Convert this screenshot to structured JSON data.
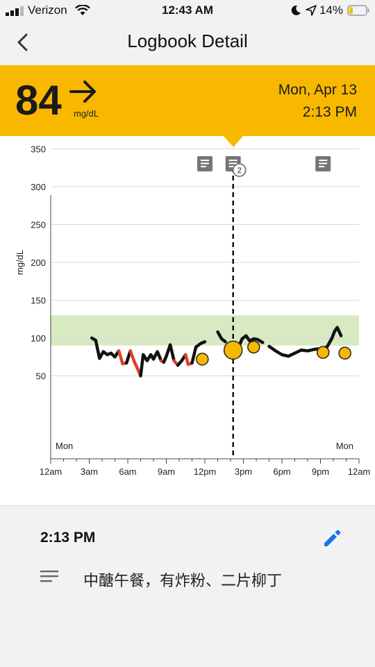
{
  "status_bar": {
    "carrier": "Verizon",
    "time": "12:43 AM",
    "battery": "14%",
    "icons": [
      "signal-icon",
      "wifi-icon",
      "moon-icon",
      "location-icon",
      "battery-icon"
    ]
  },
  "nav": {
    "title": "Logbook Detail",
    "back_icon": "chevron-left-icon"
  },
  "reading": {
    "value": "84",
    "unit": "mg/dL",
    "trend_icon": "arrow-right-icon",
    "date": "Mon, Apr 13",
    "time": "2:13 PM"
  },
  "colors": {
    "banner": "#f9b800",
    "target_range": "#d7eac2",
    "glucose_line": "#111111",
    "low_line": "#e53d2a",
    "marker": "#f9b800",
    "edit": "#1a73e8"
  },
  "chart_data": {
    "type": "line",
    "ylabel": "mg/dL",
    "ylim": [
      0,
      360
    ],
    "yticks": [
      "350",
      "300",
      "250",
      "200",
      "150",
      "100",
      "50"
    ],
    "xticks": [
      "12am",
      "3am",
      "6am",
      "9am",
      "12pm",
      "3pm",
      "6pm",
      "9pm",
      "12am"
    ],
    "day_labels": [
      "Mon",
      "Mon"
    ],
    "target_range": [
      90,
      130
    ],
    "low_threshold": 70,
    "selected_hour": 14.2,
    "note_badge": "2",
    "note_hours": [
      12.0,
      14.2,
      21.2
    ],
    "segments": [
      [
        [
          3.2,
          100
        ],
        [
          3.5,
          97
        ],
        [
          3.8,
          73
        ],
        [
          4.1,
          82
        ],
        [
          4.4,
          78
        ],
        [
          4.7,
          80
        ],
        [
          5.0,
          75
        ],
        [
          5.3,
          83
        ],
        [
          5.6,
          66
        ],
        [
          5.9,
          67
        ],
        [
          6.2,
          83
        ],
        [
          6.5,
          69
        ],
        [
          6.8,
          58
        ],
        [
          7.0,
          50
        ],
        [
          7.2,
          78
        ],
        [
          7.5,
          70
        ],
        [
          7.8,
          78
        ],
        [
          8.0,
          72
        ],
        [
          8.3,
          82
        ],
        [
          8.6,
          70
        ],
        [
          8.8,
          68
        ],
        [
          9.0,
          76
        ],
        [
          9.3,
          91
        ],
        [
          9.6,
          70
        ],
        [
          9.9,
          64
        ],
        [
          10.2,
          70
        ],
        [
          10.5,
          78
        ],
        [
          10.7,
          65
        ],
        [
          11.0,
          67
        ],
        [
          11.3,
          88
        ],
        [
          11.7,
          93
        ],
        [
          12.0,
          95
        ]
      ],
      [
        [
          13.0,
          108
        ],
        [
          13.3,
          99
        ],
        [
          13.6,
          95
        ]
      ],
      [
        [
          14.6,
          87
        ],
        [
          14.9,
          99
        ],
        [
          15.2,
          103
        ],
        [
          15.5,
          96
        ],
        [
          15.8,
          99
        ],
        [
          16.1,
          98
        ],
        [
          16.5,
          94
        ]
      ],
      [
        [
          17.0,
          89
        ],
        [
          17.5,
          83
        ],
        [
          18.0,
          78
        ],
        [
          18.5,
          76
        ],
        [
          19.0,
          80
        ],
        [
          19.5,
          84
        ],
        [
          20.0,
          83
        ],
        [
          20.5,
          85
        ],
        [
          21.0,
          86
        ],
        [
          21.5,
          88
        ],
        [
          21.9,
          100
        ],
        [
          22.1,
          109
        ],
        [
          22.3,
          114
        ],
        [
          22.6,
          103
        ]
      ]
    ],
    "markers": [
      {
        "x": 11.8,
        "y": 72,
        "size": "small"
      },
      {
        "x": 14.2,
        "y": 84,
        "size": "large"
      },
      {
        "x": 15.8,
        "y": 88,
        "size": "small"
      },
      {
        "x": 21.2,
        "y": 81,
        "size": "small"
      },
      {
        "x": 22.9,
        "y": 80,
        "size": "small"
      }
    ]
  },
  "entry": {
    "time": "2:13 PM",
    "note": "中醣午餐，有炸粉、二片柳丁",
    "edit_icon": "pencil-icon",
    "notes_icon": "notes-lines-icon"
  }
}
